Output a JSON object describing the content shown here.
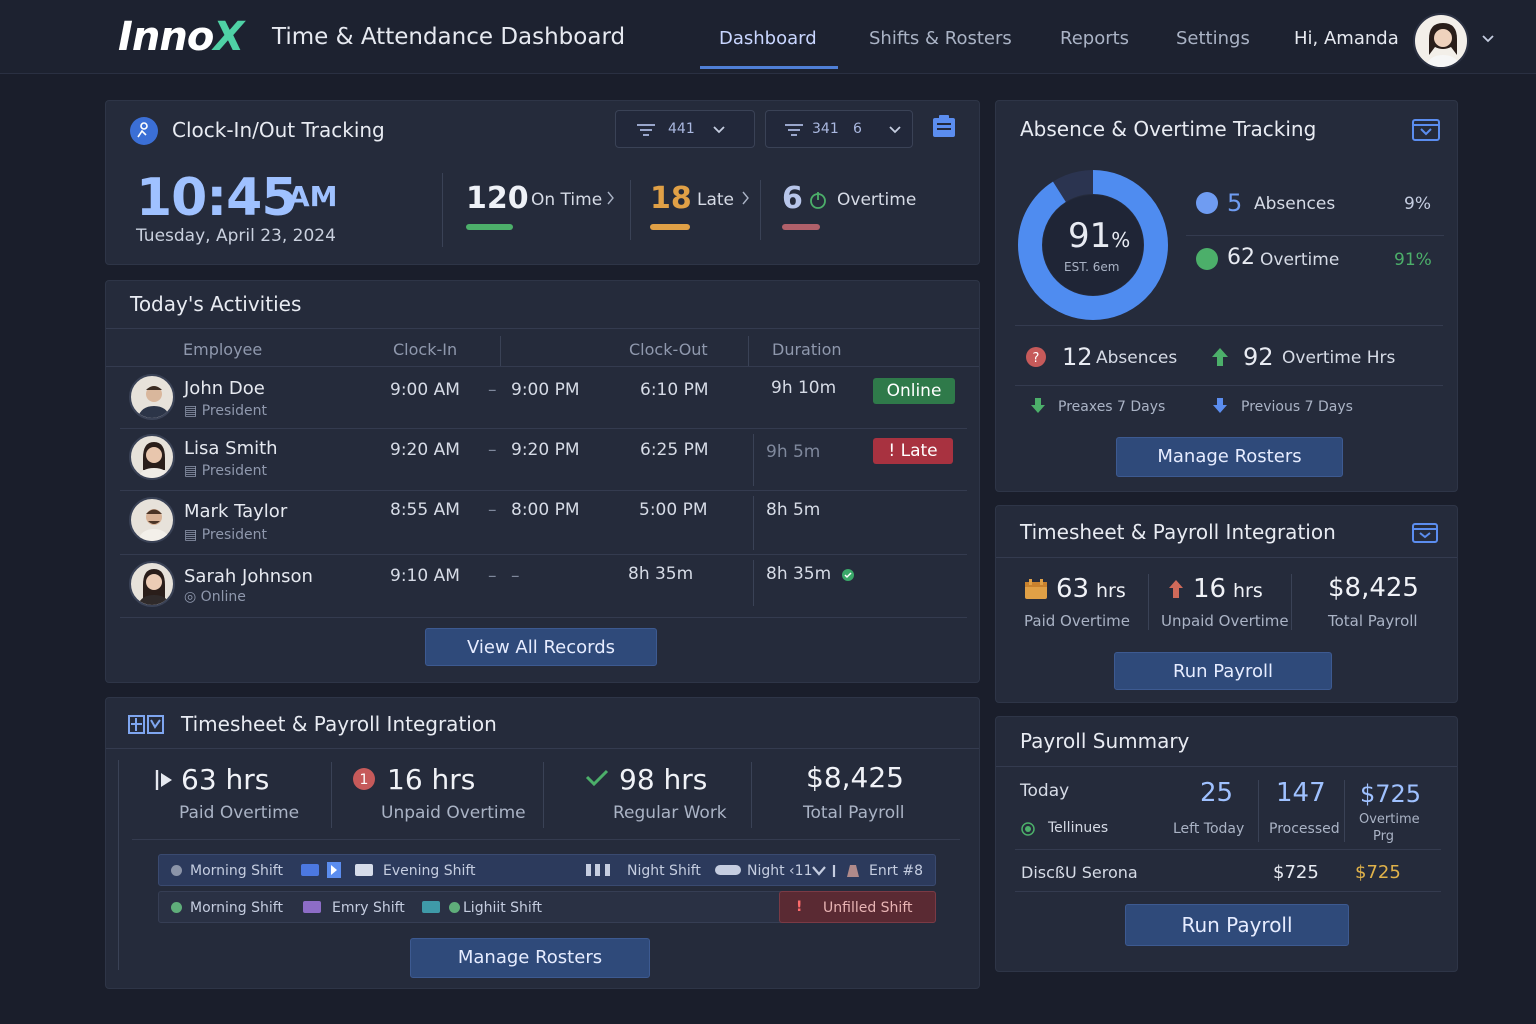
{
  "header": {
    "logo_main": "Inno",
    "logo_x": "X",
    "title": "Time & Attendance Dashboard",
    "nav": [
      "Dashboard",
      "Shifts & Rosters",
      "Reports",
      "Settings"
    ],
    "greeting": "Hi, Amanda"
  },
  "clock": {
    "title": "Clock-In/Out Tracking",
    "filter1_value": "441",
    "filter2_value": "341",
    "filter2_extra": "6",
    "time": "10:45",
    "ampm": "AM",
    "date": "Tuesday, April 23, 2024",
    "stats": [
      {
        "value": "120",
        "label": "On Time",
        "color": "#4caf6a"
      },
      {
        "value": "18",
        "label": "Late",
        "color": "#e0a046"
      },
      {
        "value": "6",
        "label": "Overtime",
        "color": "#b0606a"
      }
    ]
  },
  "activities": {
    "title": "Today's Activities",
    "columns": [
      "Employee",
      "Clock-In",
      "Clock-Out",
      "Duration"
    ],
    "rows": [
      {
        "name": "John Doe",
        "role": "President",
        "in": "9:00 AM",
        "dash": "–",
        "mid": "9:00 PM",
        "out": "6:10 PM",
        "duration": "9h 10m",
        "badge": "Online"
      },
      {
        "name": "Lisa Smith",
        "role": "President",
        "in": "9:20 AM",
        "dash": "–",
        "mid": "9:20 PM",
        "out": "6:25 PM",
        "duration": "9h 5m",
        "badge": "! Late"
      },
      {
        "name": "Mark Taylor",
        "role": "President",
        "in": "8:55 AM",
        "dash": "–",
        "mid": "8:00 PM",
        "out": "5:00 PM",
        "duration": "8h 5m",
        "badge": ""
      },
      {
        "name": "Sarah Johnson",
        "role": "Online",
        "in": "9:10 AM",
        "dash": "–",
        "mid": "–",
        "out": "8h 35m",
        "duration": "8h 35m",
        "badge": ""
      }
    ],
    "view_all": "View All Records"
  },
  "timesheet_main": {
    "title": "Timesheet & Payroll Integration",
    "stats": [
      {
        "value": "63 hrs",
        "label": "Paid Overtime"
      },
      {
        "value": "16 hrs",
        "label": "Unpaid Overtime"
      },
      {
        "value": "98 hrs",
        "label": "Regular Work"
      },
      {
        "value": "$8,425",
        "label": "Total Payroll"
      }
    ],
    "bar1": {
      "a": "Morning Shift",
      "b": "Evening Shift",
      "c": "Night Shift",
      "d": "Night ‹11",
      "e": "Enrt #8"
    },
    "bar2": {
      "a": "Morning Shift",
      "b": "Emry Shift",
      "c": "Lighiit Shift",
      "alert": "Unfilled Shift"
    },
    "manage": "Manage Rosters"
  },
  "absence": {
    "title": "Absence & Overtime Tracking",
    "donut_pct": "91",
    "donut_pct_sign": "%",
    "donut_sub": "EST. 6em",
    "donut_fraction": 0.91,
    "legend": [
      {
        "value": "5",
        "label": "Absences",
        "pct": "9%",
        "color": "#5b8def"
      },
      {
        "value": "62",
        "label": "Overtime",
        "pct": "91%",
        "color": "#4caf6a"
      }
    ],
    "absences_count": "12",
    "absences_label": "Absences",
    "overtime_count": "92",
    "overtime_label": "Overtime Hrs",
    "prev1": "Preaxes 7 Days",
    "prev2": "Previous 7 Days",
    "manage": "Manage Rosters"
  },
  "timesheet_side": {
    "title": "Timesheet & Payroll Integration",
    "paid_value": "63",
    "paid_unit": "hrs",
    "paid_label": "Paid Overtime",
    "unpaid_value": "16",
    "unpaid_unit": "hrs",
    "unpaid_label": "Unpaid Overtime",
    "total_value": "$8,425",
    "total_label": "Total Payroll",
    "run": "Run Payroll"
  },
  "payroll": {
    "title": "Payroll Summary",
    "today": "Today",
    "col1_value": "25",
    "col1_label": "Left Today",
    "col2_value": "147",
    "col2_label": "Processed",
    "col3_value": "$725",
    "col3_label1": "Overtime",
    "col3_label2": "Prg",
    "tellinues": "Tellinues",
    "row_label": "DiscßU Serona",
    "row_v1": "$725",
    "row_v2": "$725",
    "run": "Run Payroll"
  }
}
